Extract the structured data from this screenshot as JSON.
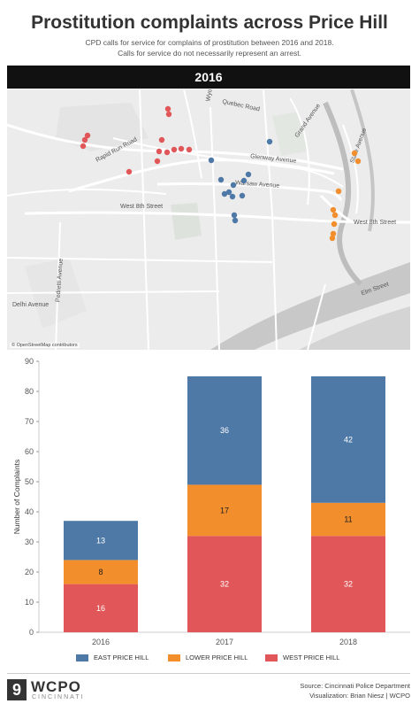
{
  "header": {
    "title": "Prostitution complaints across Price Hill",
    "subtitle_line1": "CPD calls for service for complains of prostitution between 2016 and 2018.",
    "subtitle_line2": "Calls for service do not necessarily represent an arrest."
  },
  "map": {
    "year_label": "2016",
    "credit": "© OpenStreetMap contributors",
    "streets": {
      "quebec": "Quebec Road",
      "grand": "Grand Avenue",
      "rapid_run": "Rapid Run Road",
      "glenway": "Glenway Avenue",
      "warsaw": "Warsaw Avenue",
      "west8th_left": "West 8th Street",
      "west8th_right": "West 8th Street",
      "pedretti": "Pedretti Avenue",
      "delhi": "Delhi Avenue",
      "elm": "Elm Street",
      "state": "State Avenue",
      "wyoming": "Wyo"
    },
    "colors": {
      "east": "#4e79a7",
      "lower": "#f28e2b",
      "west": "#e15759"
    }
  },
  "chart_data": {
    "type": "bar",
    "stacked": true,
    "categories": [
      "2016",
      "2017",
      "2018"
    ],
    "series": [
      {
        "name": "WEST PRICE HILL",
        "color": "#e15759",
        "values": [
          16,
          32,
          32
        ]
      },
      {
        "name": "LOWER PRICE HILL",
        "color": "#f28e2b",
        "values": [
          8,
          17,
          11
        ]
      },
      {
        "name": "EAST PRICE HILL",
        "color": "#4e79a7",
        "values": [
          13,
          36,
          42
        ]
      }
    ],
    "ylabel": "Number of Complaints",
    "ylim": [
      0,
      90
    ],
    "yticks": [
      0,
      10,
      20,
      30,
      40,
      50,
      60,
      70,
      80,
      90
    ],
    "grid": false
  },
  "legend": {
    "east": "EAST PRICE HILL",
    "lower": "LOWER PRICE HILL",
    "west": "WEST PRICE HILL"
  },
  "footer": {
    "logo_num": "9",
    "logo_name": "WCPO",
    "logo_sub": "CINCINNATI",
    "source": "Source: Cincinnati Police Department",
    "visualization": "Visualization: Brian Niesz | WCPO"
  }
}
